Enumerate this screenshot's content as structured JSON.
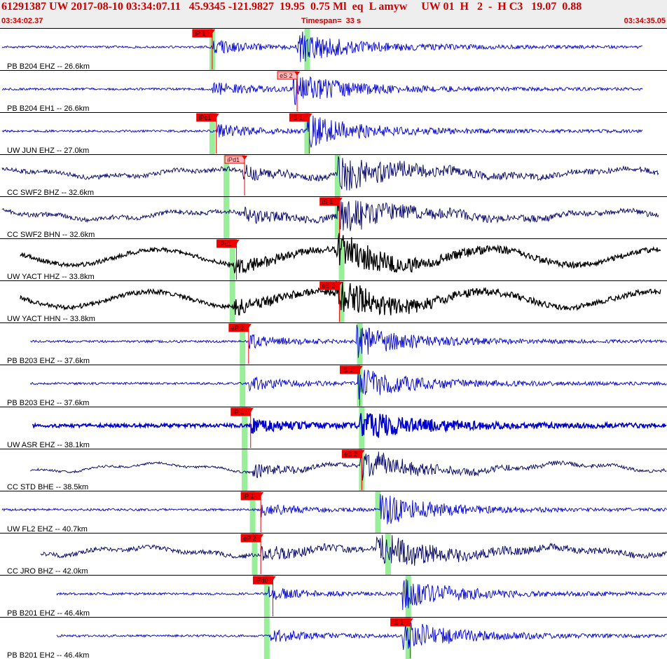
{
  "header": {
    "title": "61291387 UW 2017-08-10 03:34:07.11   45.9345 -121.9827  19.95  0.75 Ml  eq  L amyw     UW 01  H   2  -  H C3   19.07  0.88",
    "start_time": "03:34:02.37",
    "timespan": "Timespan=  33 s",
    "end_time": "03:34:35.05"
  },
  "colors": {
    "header_bg": "#eeeeee",
    "header_text": "#cc0000",
    "trace_blue": "#0000cc",
    "trace_navy": "#000066",
    "trace_black": "#000000",
    "pick_red": "#ee0000",
    "pick_outline": "#ffbbbb",
    "highlight_green": "#99ee99"
  },
  "chart_data": {
    "type": "line",
    "title": "",
    "timespan_s": 33,
    "xlim": [
      0,
      33
    ],
    "grid": false,
    "traces": [
      {
        "label": "PB B204 EHZ -- 26.6km",
        "color": "blue",
        "amp": "medium",
        "start": 0.1,
        "end": 31.8,
        "p_onset": 10.5,
        "s_onset": 14.7,
        "noise": "high-freq",
        "picks": [
          {
            "label": "iP 1",
            "t": 10.5,
            "style": "filled"
          }
        ],
        "green": [
          10.5,
          15.2
        ]
      },
      {
        "label": "PB B204 EH1 -- 26.6km",
        "color": "blue",
        "amp": "medium",
        "start": 0.1,
        "end": 31.8,
        "p_onset": 10.5,
        "s_onset": 14.5,
        "noise": "high-freq",
        "picks": [
          {
            "label": "eS 2",
            "t": 14.7,
            "style": "outline"
          }
        ],
        "green": []
      },
      {
        "label": "UW JUN EHZ -- 27.0km",
        "color": "blue",
        "amp": "medium",
        "start": 0.1,
        "end": 31.8,
        "p_onset": 10.7,
        "s_onset": 15.2,
        "noise": "high-freq",
        "picks": [
          {
            "label": "iPc1",
            "t": 10.7,
            "style": "filled"
          },
          {
            "label": "iS 1",
            "t": 15.3,
            "style": "filled"
          }
        ],
        "green": [
          10.5,
          15.2
        ]
      },
      {
        "label": "CC SWF2 BHZ -- 32.6km",
        "color": "navy",
        "amp": "large",
        "start": 0.1,
        "end": 32.6,
        "p_onset": 12.0,
        "s_onset": 16.7,
        "noise": "low-freq",
        "picks": [
          {
            "label": "iPd1",
            "t": 12.1,
            "style": "outline"
          }
        ],
        "green": [
          11.2,
          16.7
        ]
      },
      {
        "label": "CC SWF2 BHN -- 32.6km",
        "color": "navy",
        "amp": "large",
        "start": 0.1,
        "end": 32.6,
        "p_onset": 12.0,
        "s_onset": 16.7,
        "noise": "low-freq",
        "picks": [
          {
            "label": "iS 1",
            "t": 16.8,
            "style": "filled"
          }
        ],
        "green": [
          11.2,
          16.7
        ]
      },
      {
        "label": "UW YACT HHZ -- 33.8km",
        "color": "black",
        "amp": "large",
        "start": 1.0,
        "end": 32.7,
        "p_onset": 11.6,
        "s_onset": 16.6,
        "noise": "microseism",
        "picks": [
          {
            "label": "iPc1",
            "t": 11.7,
            "style": "filled"
          }
        ],
        "green": [
          11.5,
          16.9
        ]
      },
      {
        "label": "UW YACT HHN -- 33.8km",
        "color": "black",
        "amp": "large",
        "start": 1.0,
        "end": 32.7,
        "p_onset": 11.6,
        "s_onset": 16.6,
        "noise": "microseism",
        "picks": [
          {
            "label": "eS 2",
            "t": 16.8,
            "style": "filled"
          }
        ],
        "green": [
          11.5,
          16.9
        ]
      },
      {
        "label": "PB B203 EHZ -- 37.6km",
        "color": "blue",
        "amp": "medium",
        "start": 1.5,
        "end": 33.0,
        "p_onset": 12.3,
        "s_onset": 17.6,
        "noise": "high-freq",
        "picks": [
          {
            "label": "eP 2",
            "t": 12.3,
            "style": "filled"
          }
        ],
        "green": [
          12.0,
          17.8
        ]
      },
      {
        "label": "PB B203 EH2 -- 37.6km",
        "color": "blue",
        "amp": "medium",
        "start": 1.5,
        "end": 33.0,
        "p_onset": 12.3,
        "s_onset": 17.7,
        "noise": "high-freq",
        "picks": [
          {
            "label": "iS 1",
            "t": 17.8,
            "style": "filled"
          }
        ],
        "green": [
          12.0,
          17.8
        ]
      },
      {
        "label": "UW ASR EHZ -- 38.1km",
        "color": "blue",
        "amp": "bold",
        "start": 1.6,
        "end": 33.2,
        "p_onset": 12.4,
        "s_onset": 17.8,
        "noise": "high-freq",
        "picks": [
          {
            "label": "iP 1",
            "t": 12.4,
            "style": "filled"
          }
        ],
        "green": [
          12.1,
          17.9
        ]
      },
      {
        "label": "CC STD BHE -- 38.5km",
        "color": "navy",
        "amp": "medium",
        "start": 1.5,
        "end": 33.3,
        "p_onset": 12.5,
        "s_onset": 17.8,
        "noise": "low-freq",
        "picks": [
          {
            "label": "eS 2",
            "t": 17.9,
            "style": "filled"
          }
        ],
        "green": [
          12.1,
          17.9
        ]
      },
      {
        "label": "UW FL2 EHZ -- 40.7km",
        "color": "blue",
        "amp": "medium",
        "start": 0.1,
        "end": 33.3,
        "p_onset": 12.9,
        "s_onset": 18.8,
        "noise": "high-freq",
        "picks": [
          {
            "label": "iP 1",
            "t": 12.9,
            "style": "filled"
          }
        ],
        "green": [
          12.5,
          18.7
        ]
      },
      {
        "label": "CC JRO BHZ -- 42.0km",
        "color": "navy",
        "amp": "large",
        "start": 2.0,
        "end": 33.9,
        "p_onset": 12.9,
        "s_onset": 18.6,
        "noise": "low-freq",
        "picks": [
          {
            "label": "eP 2",
            "t": 12.9,
            "style": "filled"
          }
        ],
        "green": [
          12.6,
          19.2
        ]
      },
      {
        "label": "PB B201 EHZ -- 46.4km",
        "color": "blue",
        "amp": "medium",
        "start": 2.8,
        "end": 34.0,
        "p_onset": 13.3,
        "s_onset": 19.9,
        "noise": "high-freq",
        "picks": [
          {
            "label": "iPd0",
            "t": 13.5,
            "style": "filled"
          }
        ],
        "green": [
          13.2,
          20.2
        ]
      },
      {
        "label": "PB B201 EH2 -- 46.4km",
        "color": "blue",
        "amp": "medium",
        "start": 2.8,
        "end": 34.0,
        "p_onset": 13.3,
        "s_onset": 19.9,
        "noise": "high-freq",
        "picks": [
          {
            "label": "iS 1",
            "t": 20.3,
            "style": "filled"
          }
        ],
        "green": [
          13.2,
          20.2
        ]
      }
    ]
  }
}
